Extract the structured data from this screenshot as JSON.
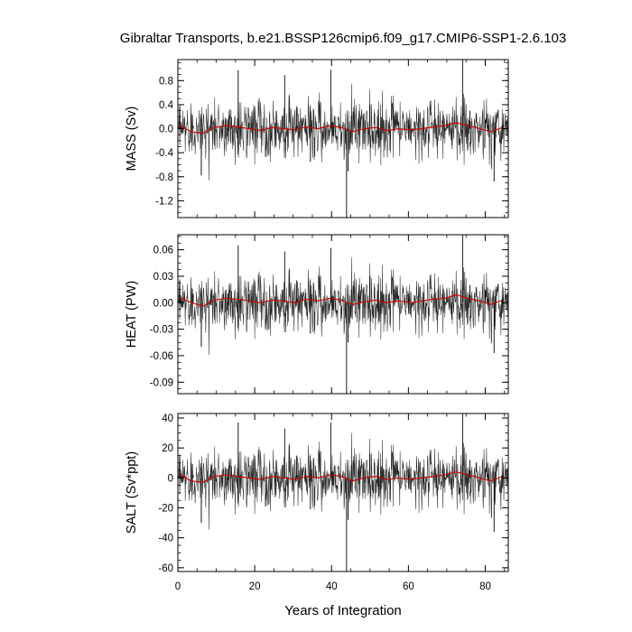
{
  "title": "Gibraltar Transports, b.e21.BSSP126cmip6.f09_g17.CMIP6-SSP1-2.6.103",
  "xlabel": "Years of Integration",
  "chart_data": [
    {
      "type": "line",
      "title": "Gibraltar Transports, b.e21.BSSP126cmip6.f09_g17.CMIP6-SSP1-2.6.103",
      "xlabel": "Years of Integration",
      "ylabel": "MASS (Sv)",
      "xlim": [
        0,
        86
      ],
      "ylim": [
        -1.48,
        1.15
      ],
      "xticks": [
        0,
        20,
        40,
        60,
        80
      ],
      "xtick_labels": [
        "0",
        "20",
        "40",
        "60",
        "80"
      ],
      "yticks": [
        0.8,
        0.4,
        0.0,
        -0.4,
        -0.8,
        -1.2
      ],
      "ytick_labels": [
        "0.8",
        "0.4",
        "0.0",
        "-0.4",
        "-0.8",
        "-1.2"
      ],
      "grid": false,
      "series": [
        {
          "color": "#000000",
          "style": "monthly",
          "x": [
            0.5,
            4.0,
            6.1,
            12.5,
            15.7,
            18.5,
            22.8,
            27.8,
            31.0,
            34.5,
            39.8,
            43.9,
            44.3,
            50.0,
            55.0,
            60.0,
            66.0,
            70.0,
            74.1,
            76.0,
            80.0,
            82.3,
            84.5
          ],
          "values": [
            0.02,
            0.05,
            -0.78,
            0.15,
            0.97,
            0.1,
            -0.47,
            0.89,
            0.05,
            -0.55,
            0.98,
            -1.48,
            -0.71,
            0.4,
            0.1,
            0.05,
            0.1,
            0.15,
            1.15,
            0.3,
            0.15,
            -0.88,
            0.05
          ]
        },
        {
          "color": "#cc0000",
          "style": "annual-mean",
          "x": [
            0.5,
            3.5,
            6.5,
            9.5,
            12.5,
            15.5,
            18.5,
            21.5,
            24.5,
            27.5,
            30.5,
            33.5,
            36.5,
            39.5,
            42.5,
            45.5,
            48.5,
            51.5,
            54.5,
            57.5,
            60.5,
            63.5,
            66.5,
            69.5,
            72.5,
            75.5,
            78.5,
            81.5,
            84.5
          ],
          "values": [
            0.05,
            -0.05,
            -0.08,
            0.02,
            0.05,
            0.03,
            0.0,
            -0.03,
            0.02,
            0.0,
            -0.02,
            0.03,
            0.0,
            0.05,
            0.02,
            -0.05,
            0.0,
            0.02,
            -0.03,
            0.0,
            -0.02,
            0.0,
            0.03,
            0.05,
            0.1,
            0.05,
            0.0,
            -0.05,
            0.02
          ]
        }
      ]
    },
    {
      "type": "line",
      "title": "",
      "xlabel": "Years of Integration",
      "ylabel": "HEAT (PW)",
      "xlim": [
        0,
        86
      ],
      "ylim": [
        -0.103,
        0.077
      ],
      "xticks": [
        0,
        20,
        40,
        60,
        80
      ],
      "xtick_labels": [
        "0",
        "20",
        "40",
        "60",
        "80"
      ],
      "yticks": [
        0.06,
        0.03,
        0.0,
        -0.03,
        -0.06,
        -0.09
      ],
      "ytick_labels": [
        "0.06",
        "0.03",
        "0.00",
        "-0.03",
        "-0.06",
        "-0.09"
      ],
      "grid": false,
      "series": [
        {
          "color": "#000000",
          "style": "monthly",
          "x": [
            0.5,
            4.0,
            6.1,
            12.5,
            15.7,
            18.5,
            22.8,
            27.8,
            31.0,
            34.5,
            39.8,
            43.9,
            44.3,
            50.0,
            55.0,
            60.0,
            66.0,
            70.0,
            74.1,
            76.0,
            80.0,
            82.3,
            84.5
          ],
          "values": [
            0.005,
            0.01,
            -0.05,
            0.015,
            0.065,
            0.01,
            -0.03,
            0.058,
            0.005,
            -0.035,
            0.062,
            -0.103,
            -0.045,
            0.03,
            0.01,
            0.005,
            0.01,
            0.015,
            0.077,
            0.02,
            0.015,
            -0.057,
            0.005
          ]
        },
        {
          "color": "#cc0000",
          "style": "annual-mean",
          "x": [
            0.5,
            3.5,
            6.5,
            9.5,
            12.5,
            15.5,
            18.5,
            21.5,
            24.5,
            27.5,
            30.5,
            33.5,
            36.5,
            39.5,
            42.5,
            45.5,
            48.5,
            51.5,
            54.5,
            57.5,
            60.5,
            63.5,
            66.5,
            69.5,
            72.5,
            75.5,
            78.5,
            81.5,
            84.5
          ],
          "values": [
            0.006,
            0.0,
            -0.004,
            0.003,
            0.005,
            0.004,
            0.002,
            0.0,
            0.003,
            0.002,
            0.0,
            0.004,
            0.002,
            0.005,
            0.003,
            -0.002,
            0.001,
            0.003,
            0.0,
            0.002,
            0.0,
            0.002,
            0.004,
            0.005,
            0.009,
            0.005,
            0.002,
            -0.002,
            0.003
          ]
        }
      ]
    },
    {
      "type": "line",
      "title": "",
      "xlabel": "Years of Integration",
      "ylabel": "SALT (Sv*ppt)",
      "xlim": [
        0,
        86
      ],
      "ylim": [
        -62.5,
        43
      ],
      "xticks": [
        0,
        20,
        40,
        60,
        80
      ],
      "xtick_labels": [
        "0",
        "20",
        "40",
        "60",
        "80"
      ],
      "yticks": [
        40,
        20,
        0,
        -20,
        -40,
        -60
      ],
      "ytick_labels": [
        "40",
        "20",
        "0",
        "-20",
        "-40",
        "-60"
      ],
      "grid": false,
      "series": [
        {
          "color": "#000000",
          "style": "monthly",
          "x": [
            0.5,
            4.0,
            6.1,
            12.5,
            15.7,
            18.5,
            22.8,
            27.8,
            31.0,
            34.5,
            39.8,
            43.9,
            44.3,
            50.0,
            55.0,
            60.0,
            66.0,
            70.0,
            74.1,
            76.0,
            80.0,
            82.3,
            84.5
          ],
          "values": [
            1,
            2,
            -30,
            6,
            37,
            4,
            -19,
            33,
            2,
            -21,
            37,
            -62.5,
            -28,
            16,
            4,
            2,
            4,
            6,
            43,
            12,
            6,
            -36,
            2
          ]
        },
        {
          "color": "#cc0000",
          "style": "annual-mean",
          "x": [
            0.5,
            3.5,
            6.5,
            9.5,
            12.5,
            15.5,
            18.5,
            21.5,
            24.5,
            27.5,
            30.5,
            33.5,
            36.5,
            39.5,
            42.5,
            45.5,
            48.5,
            51.5,
            54.5,
            57.5,
            60.5,
            63.5,
            66.5,
            69.5,
            72.5,
            75.5,
            78.5,
            81.5,
            84.5
          ],
          "values": [
            2,
            -2,
            -3,
            1,
            2,
            1,
            0,
            -1,
            1,
            0,
            -1,
            1,
            0,
            2,
            1,
            -2,
            0,
            1,
            -1,
            0,
            -1,
            0,
            1,
            2,
            4,
            2,
            0,
            -2,
            1
          ]
        }
      ]
    }
  ]
}
